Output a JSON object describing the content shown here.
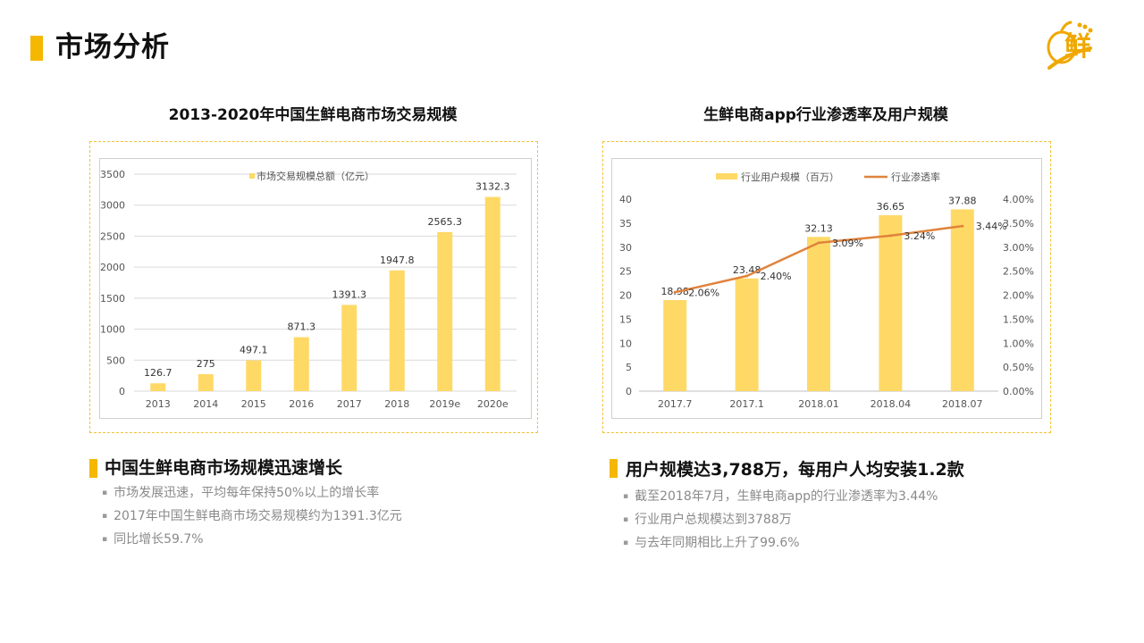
{
  "page": {
    "title": "市场分析"
  },
  "colors": {
    "accent": "#f5b700",
    "bar": "#ffd966",
    "line": "#e0833c",
    "grid": "#d9d9d9",
    "axis_text": "#555555"
  },
  "logo": {
    "icon": "fresh-logo-icon",
    "glyph": "鲜"
  },
  "left": {
    "chart_title": "2013-2020年中国生鲜电商市场交易规模",
    "section_title": "中国生鲜电商市场规模迅速增长",
    "bullets": [
      "市场发展迅速，平均每年保持50%以上的增长率",
      "2017年中国生鲜电商市场交易规模约为1391.3亿元",
      "同比增长59.7%"
    ]
  },
  "right": {
    "chart_title": "生鲜电商app行业渗透率及用户规模",
    "section_title": "用户规模达3,788万，每用户人均安装1.2款",
    "bullets": [
      "截至2018年7月，生鲜电商app的行业渗透率为3.44%",
      "行业用户总规模达到3788万",
      "与去年同期相比上升了99.6%"
    ]
  },
  "chart_data": [
    {
      "type": "bar",
      "categories": [
        "2013",
        "2014",
        "2015",
        "2016",
        "2017",
        "2018",
        "2019e",
        "2020e"
      ],
      "series": [
        {
          "name": "市场交易规模总额（亿元）",
          "values": [
            126.7,
            275,
            497.1,
            871.3,
            1391.3,
            1947.8,
            2565.3,
            3132.3
          ]
        }
      ],
      "data_labels": [
        "126.7",
        "275",
        "497.1",
        "871.3",
        "1391.3",
        "1947.8",
        "2565.3",
        "3132.3"
      ],
      "ylim": [
        0,
        3500
      ],
      "yticks": [
        "0",
        "500",
        "1000",
        "1500",
        "2000",
        "2500",
        "3000",
        "3500"
      ],
      "grid": true,
      "legend": "top-center"
    },
    {
      "type": "bar",
      "categories": [
        "2017.7",
        "2017.1",
        "2018.01",
        "2018.04",
        "2018.07"
      ],
      "series": [
        {
          "name": "行业用户规模（百万）",
          "type": "bar",
          "axis": "left",
          "values": [
            18.98,
            23.48,
            32.13,
            36.65,
            37.88
          ],
          "labels": [
            "18.98",
            "23.48",
            "32.13",
            "36.65",
            "37.88"
          ]
        },
        {
          "name": "行业渗透率",
          "type": "line",
          "axis": "right",
          "values": [
            2.06,
            2.4,
            3.09,
            3.24,
            3.44
          ],
          "labels": [
            "2.06%",
            "2.40%",
            "3.09%",
            "3.24%",
            "3.44%"
          ]
        }
      ],
      "ylim": [
        0,
        40
      ],
      "yticks": [
        "0",
        "5",
        "10",
        "15",
        "20",
        "25",
        "30",
        "35",
        "40"
      ],
      "y2lim": [
        0,
        4
      ],
      "y2ticks": [
        "0.00%",
        "0.50%",
        "1.00%",
        "1.50%",
        "2.00%",
        "2.50%",
        "3.00%",
        "3.50%",
        "4.00%"
      ],
      "grid": false,
      "legend": "top-center"
    }
  ]
}
